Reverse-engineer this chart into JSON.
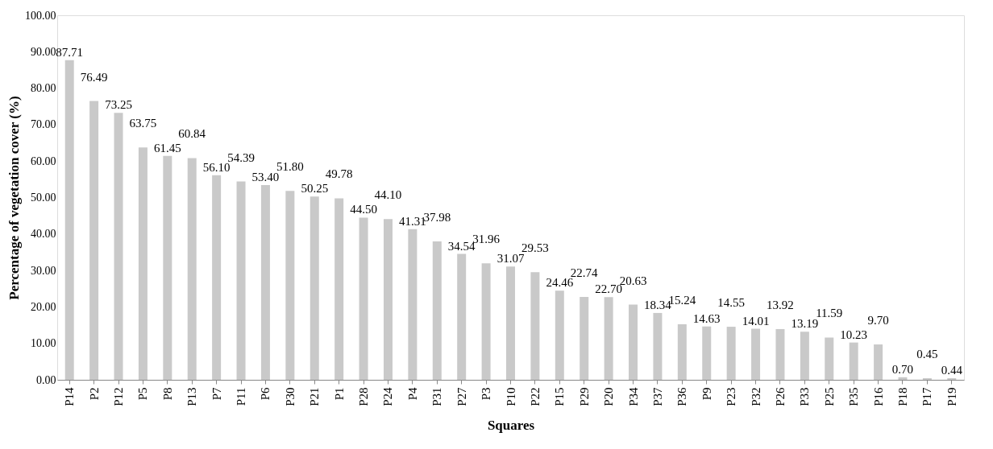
{
  "chart_data": {
    "type": "bar",
    "xlabel": "Squares",
    "ylabel": "Percentage of vegetation cover (%)",
    "categories": [
      "P14",
      "P2",
      "P12",
      "P5",
      "P8",
      "P13",
      "P7",
      "P11",
      "P6",
      "P30",
      "P21",
      "P1",
      "P28",
      "P24",
      "P4",
      "P31",
      "P27",
      "P3",
      "P10",
      "P22",
      "P15",
      "P29",
      "P20",
      "P34",
      "P37",
      "P36",
      "P9",
      "P23",
      "P32",
      "P26",
      "P33",
      "P25",
      "P35",
      "P16",
      "P18",
      "P17",
      "P19"
    ],
    "values": [
      87.71,
      76.49,
      73.25,
      63.75,
      61.45,
      60.84,
      56.1,
      54.39,
      53.4,
      51.8,
      50.25,
      49.78,
      44.5,
      44.1,
      41.31,
      37.98,
      34.54,
      31.96,
      31.07,
      29.53,
      24.46,
      22.74,
      22.7,
      20.63,
      18.34,
      15.24,
      14.63,
      14.55,
      14.01,
      13.92,
      13.19,
      11.59,
      10.23,
      9.7,
      0.7,
      0.45,
      0.44
    ],
    "value_labels": [
      "87.71",
      "76.49",
      "73.25",
      "63.75",
      "61.45",
      "60.84",
      "56.10",
      "54.39",
      "53.40",
      "51.80",
      "50.25",
      "49.78",
      "44.50",
      "44.10",
      "41.31",
      "37.98",
      "34.54",
      "31.96",
      "31.07",
      "29.53",
      "24.46",
      "22.74",
      "22.70",
      "20.63",
      "18.34",
      "15.24",
      "14.63",
      "14.55",
      "14.01",
      "13.92",
      "13.19",
      "11.59",
      "10.23",
      "9.70",
      "0.70",
      "0.45",
      "0.44"
    ],
    "color": "#c9c9c9",
    "ylim": [
      0,
      100
    ],
    "yticks": [
      {
        "value": 0,
        "label": "0.00"
      },
      {
        "value": 10,
        "label": "10.00"
      },
      {
        "value": 20,
        "label": "20.00"
      },
      {
        "value": 30,
        "label": "30.00"
      },
      {
        "value": 40,
        "label": "40.00"
      },
      {
        "value": 50,
        "label": "50.00"
      },
      {
        "value": 60,
        "label": "60.00"
      },
      {
        "value": 70,
        "label": "70.00"
      },
      {
        "value": 80,
        "label": "80.00"
      },
      {
        "value": 90,
        "label": "90.00"
      },
      {
        "value": 100,
        "label": "100.00"
      }
    ],
    "grid": false
  }
}
